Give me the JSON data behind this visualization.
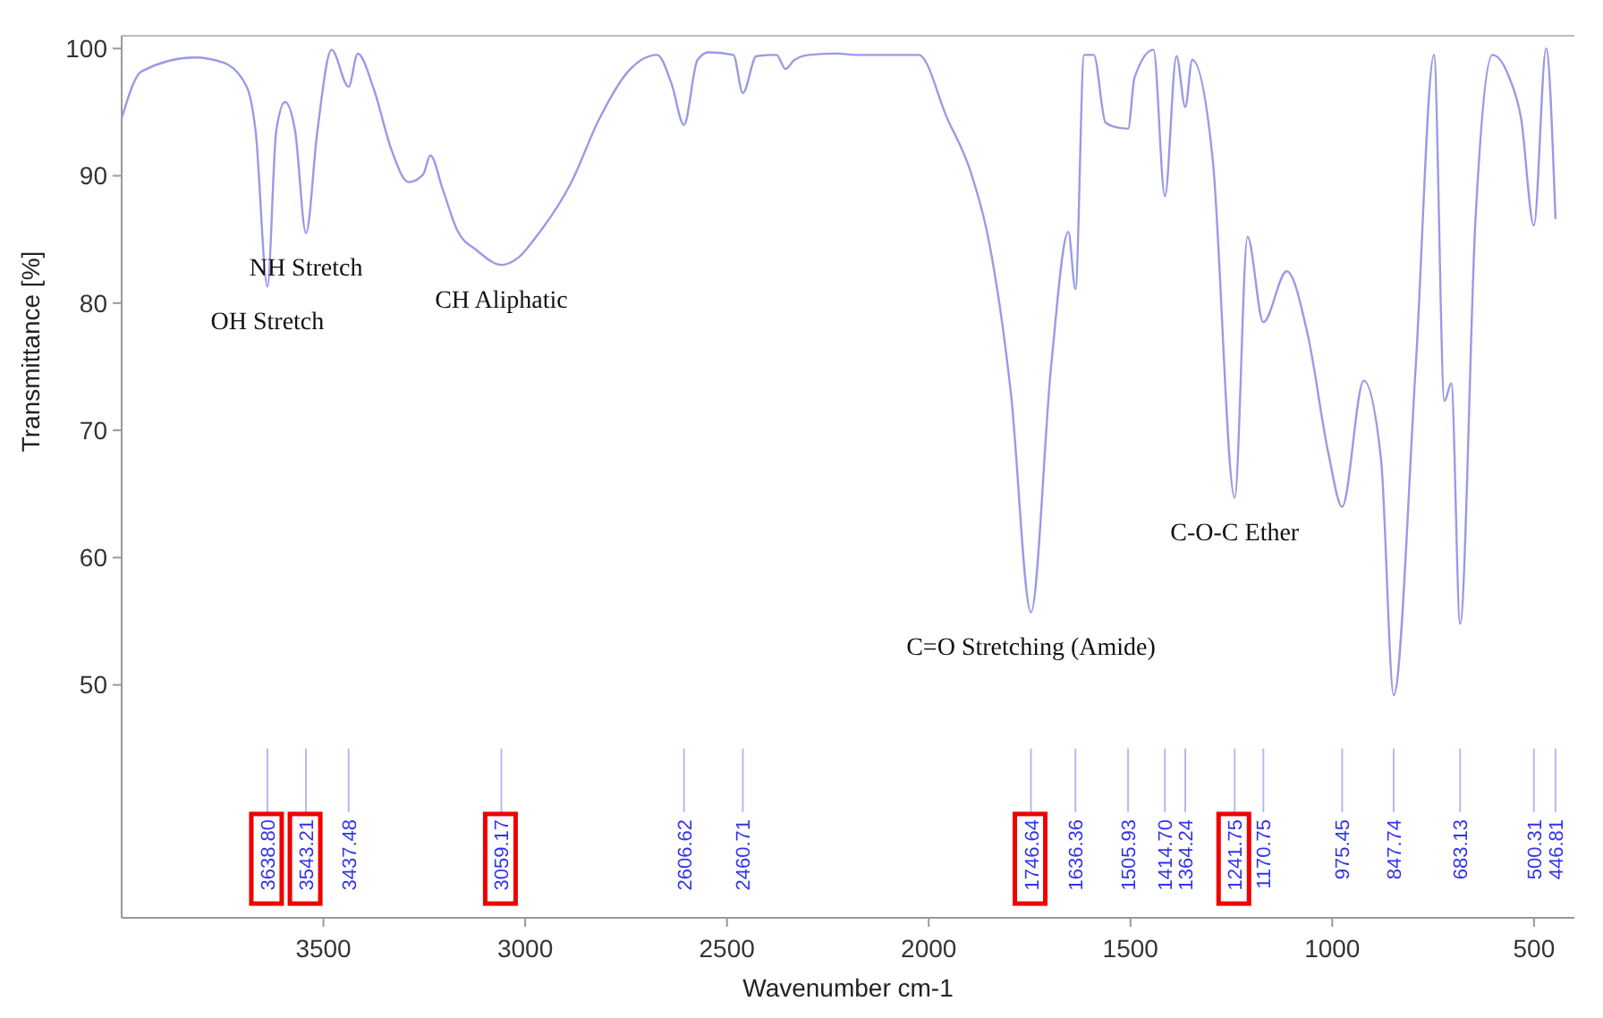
{
  "chart_data": {
    "type": "line",
    "xlabel": "Wavenumber cm-1",
    "ylabel": "Transmittance [%]",
    "xlim": [
      4000,
      400
    ],
    "ylim": [
      31.7,
      101
    ],
    "xticks": [
      3500,
      3000,
      2500,
      2000,
      1500,
      1000,
      500
    ],
    "yticks": [
      50,
      60,
      70,
      80,
      90,
      100
    ],
    "grid": false,
    "marker": "none",
    "line_style": "solid",
    "series": [
      {
        "color": "#9a9ae6",
        "x": [
          4000,
          3951,
          3820,
          3748,
          3690,
          3668,
          3638.8,
          3617,
          3595,
          3570,
          3543.21,
          3515,
          3480,
          3437.48,
          3415,
          3375,
          3332,
          3289,
          3253,
          3235,
          3204,
          3168,
          3118,
          3059.17,
          3016,
          2973,
          2887,
          2816,
          2745,
          2673,
          2637,
          2606.62,
          2573,
          2545,
          2484,
          2460.71,
          2427,
          2377,
          2355,
          2333,
          2297,
          2225,
          2182,
          2025,
          1954,
          1896,
          1853,
          1796,
          1746.64,
          1696.5,
          1654,
          1636.36,
          1615,
          1591,
          1562,
          1534,
          1505.93,
          1490,
          1443,
          1414.7,
          1386,
          1364.24,
          1347,
          1296,
          1241.75,
          1210,
          1170.75,
          1113,
          1060,
          1009,
          975.45,
          922,
          879,
          847.74,
          793,
          748,
          722,
          705,
          683.13,
          645,
          603,
          561,
          532,
          500.31,
          470,
          446.81
        ],
        "values": [
          94.5,
          98.2,
          99.3,
          98.9,
          97.0,
          93.5,
          81.3,
          93.5,
          95.8,
          93.5,
          85.5,
          93.5,
          99.9,
          97.0,
          99.6,
          96.8,
          92.1,
          89.5,
          90.1,
          91.6,
          88.9,
          85.7,
          84.1,
          83.0,
          83.6,
          85.2,
          89.4,
          94.5,
          98.2,
          99.5,
          97.2,
          94.0,
          99.1,
          99.7,
          99.5,
          96.5,
          99.4,
          99.5,
          98.4,
          99.1,
          99.5,
          99.6,
          99.5,
          99.5,
          94.5,
          90.3,
          85.2,
          72.8,
          55.7,
          75.1,
          85.6,
          81.1,
          99.5,
          99.5,
          94.2,
          93.8,
          93.7,
          97.7,
          99.9,
          88.4,
          99.4,
          95.4,
          99.1,
          91.2,
          64.7,
          85.2,
          78.5,
          82.5,
          77.4,
          68.1,
          64.0,
          73.9,
          67.7,
          49.2,
          75.1,
          99.5,
          72.3,
          73.7,
          54.8,
          86.6,
          99.5,
          97.7,
          94.5,
          86.1,
          100,
          86.6
        ]
      }
    ],
    "annotations": [
      {
        "text": "OH Stretch",
        "x": 3638.8,
        "y": 81.3
      },
      {
        "text": "NH Stretch",
        "x": 3543.21,
        "y": 85.5
      },
      {
        "text": "CH Aliphatic",
        "x": 3059.17,
        "y": 83.0
      },
      {
        "text": "C=O Stretching (Amide)",
        "x": 1746.64,
        "y": 55.7
      },
      {
        "text": "C-O-C Ether",
        "x": 1241.75,
        "y": 64.7
      }
    ],
    "ref_lines": [
      {
        "axis": "x",
        "value": 3638.8,
        "label": "3638.80",
        "color": "#b8b8ee"
      },
      {
        "axis": "x",
        "value": 3543.21,
        "label": "3543.21",
        "color": "#b8b8ee"
      },
      {
        "axis": "x",
        "value": 3437.48,
        "label": "3437.48",
        "color": "#b8b8ee"
      },
      {
        "axis": "x",
        "value": 3059.17,
        "label": "3059.17",
        "color": "#b8b8ee"
      },
      {
        "axis": "x",
        "value": 2606.62,
        "label": "2606.62",
        "color": "#b8b8ee"
      },
      {
        "axis": "x",
        "value": 2460.71,
        "label": "2460.71",
        "color": "#b8b8ee"
      },
      {
        "axis": "x",
        "value": 1746.64,
        "label": "1746.64",
        "color": "#b8b8ee"
      },
      {
        "axis": "x",
        "value": 1636.36,
        "label": "1636.36",
        "color": "#b8b8ee"
      },
      {
        "axis": "x",
        "value": 1505.93,
        "label": "1505.93",
        "color": "#b8b8ee"
      },
      {
        "axis": "x",
        "value": 1414.7,
        "label": "1414.70",
        "color": "#b8b8ee"
      },
      {
        "axis": "x",
        "value": 1364.24,
        "label": "1364.24",
        "color": "#b8b8ee"
      },
      {
        "axis": "x",
        "value": 1241.75,
        "label": "1241.75",
        "color": "#b8b8ee"
      },
      {
        "axis": "x",
        "value": 1170.75,
        "label": "1170.75",
        "color": "#b8b8ee"
      },
      {
        "axis": "x",
        "value": 975.45,
        "label": "975.45",
        "color": "#b8b8ee"
      },
      {
        "axis": "x",
        "value": 847.74,
        "label": "847.74",
        "color": "#b8b8ee"
      },
      {
        "axis": "x",
        "value": 683.13,
        "label": "683.13",
        "color": "#b8b8ee"
      },
      {
        "axis": "x",
        "value": 500.31,
        "label": "500.31",
        "color": "#b8b8ee"
      },
      {
        "axis": "x",
        "value": 446.81,
        "label": "446.81",
        "color": "#b8b8ee"
      }
    ]
  }
}
